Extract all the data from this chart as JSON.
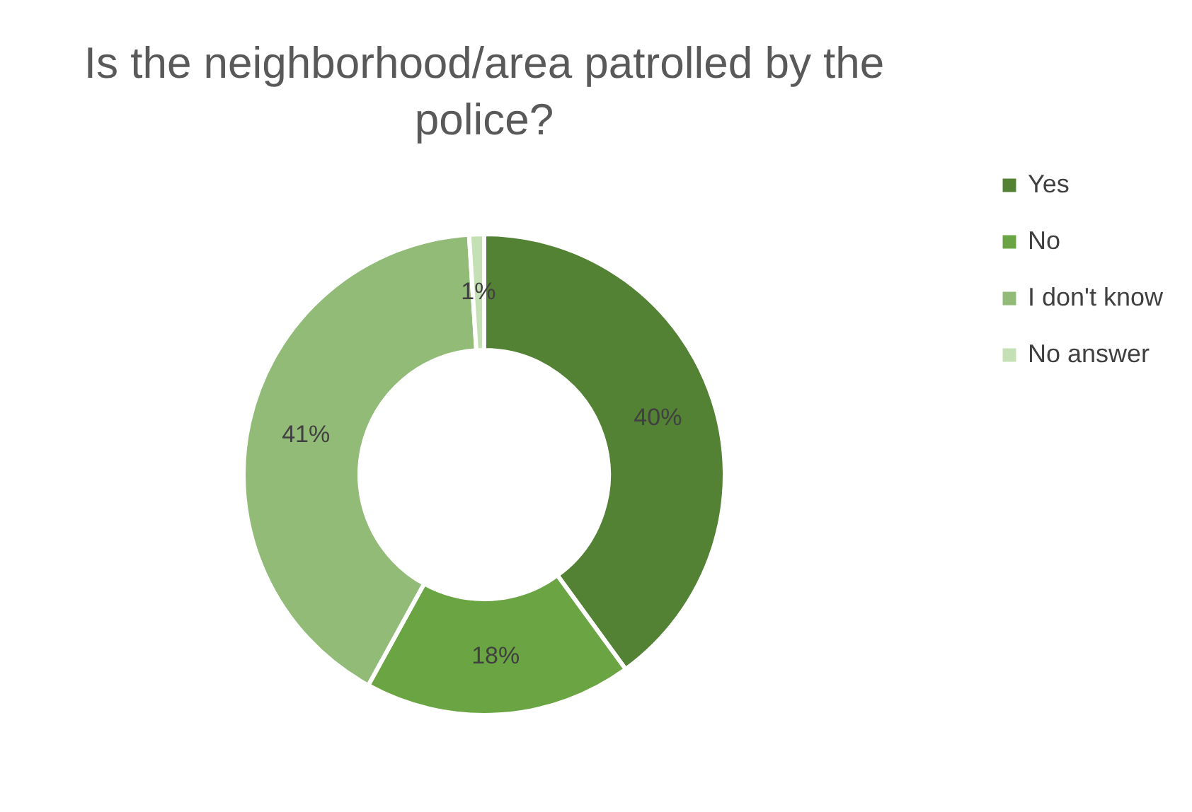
{
  "chart_data": {
    "type": "donut",
    "title": "Is the neighborhood/area patrolled by the police?",
    "categories": [
      "Yes",
      "No",
      "I don't know",
      "No answer"
    ],
    "values": [
      40,
      18,
      41,
      1
    ],
    "value_labels": [
      "40%",
      "18%",
      "41%",
      "1%"
    ],
    "colors": [
      "#548235",
      "#6aa443",
      "#92bb78",
      "#c5e0b4"
    ],
    "legend": "right"
  }
}
